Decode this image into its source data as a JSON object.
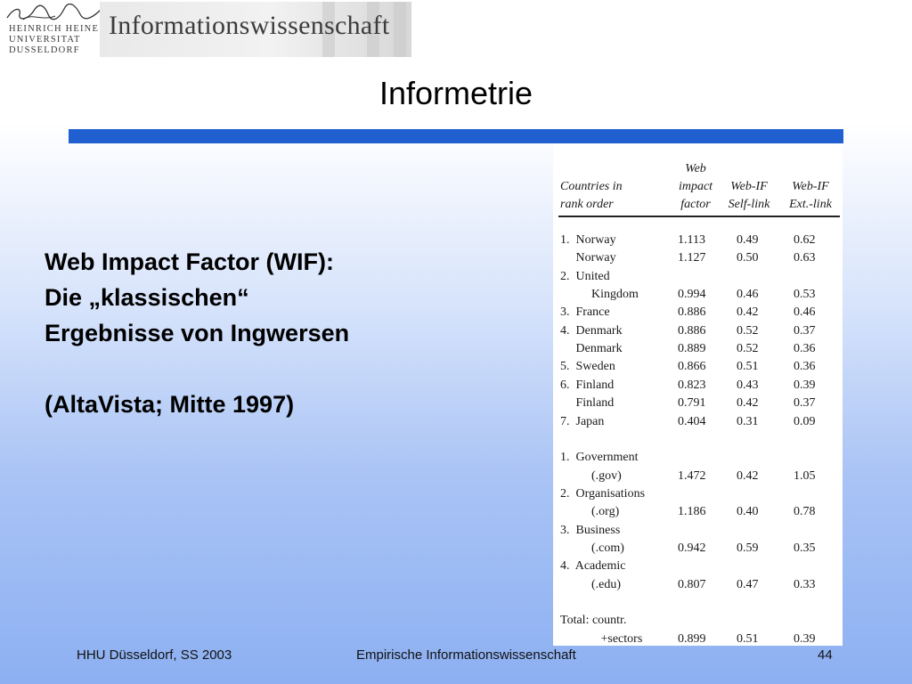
{
  "header": {
    "logo_lines": [
      "HEINRICH HEINE",
      "UNIVERSITAT",
      "DUSSELDORF"
    ],
    "banner_title": "Informationswissenschaft"
  },
  "slide": {
    "title": "Informetrie",
    "text_lines": [
      "Web Impact Factor (WIF):",
      "Die „klassischen“",
      "Ergebnisse von Ingwersen"
    ],
    "source_line": "(AltaVista; Mitte 1997)"
  },
  "table": {
    "headers": {
      "col0_l1": "Countries in",
      "col0_l2": "rank order",
      "col1_l1": "Web",
      "col1_l2": "impact",
      "col1_l3": "factor",
      "col2_l2": "Web-IF",
      "col2_l3": "Self-link",
      "col3_l2": "Web-IF",
      "col3_l3": "Ext.-link"
    },
    "rows": [
      {
        "label": "1.  Norway",
        "v1": "1.113",
        "v2": "0.49",
        "v3": "0.62"
      },
      {
        "label": "     Norway",
        "v1": "1.127",
        "v2": "0.50",
        "v3": "0.63"
      },
      {
        "label": "2.  United",
        "v1": "",
        "v2": "",
        "v3": ""
      },
      {
        "label": "          Kingdom",
        "v1": "0.994",
        "v2": "0.46",
        "v3": "0.53"
      },
      {
        "label": "3.  France",
        "v1": "0.886",
        "v2": "0.42",
        "v3": "0.46"
      },
      {
        "label": "4.  Denmark",
        "v1": "0.886",
        "v2": "0.52",
        "v3": "0.37"
      },
      {
        "label": "     Denmark",
        "v1": "0.889",
        "v2": "0.52",
        "v3": "0.36"
      },
      {
        "label": "5.  Sweden",
        "v1": "0.866",
        "v2": "0.51",
        "v3": "0.36"
      },
      {
        "label": "6.  Finland",
        "v1": "0.823",
        "v2": "0.43",
        "v3": "0.39"
      },
      {
        "label": "     Finland",
        "v1": "0.791",
        "v2": "0.42",
        "v3": "0.37"
      },
      {
        "label": "7.  Japan",
        "v1": "0.404",
        "v2": "0.31",
        "v3": "0.09"
      },
      {
        "label": "",
        "v1": "",
        "v2": "",
        "v3": ""
      },
      {
        "label": "1.  Government",
        "v1": "",
        "v2": "",
        "v3": ""
      },
      {
        "label": "          (.gov)",
        "v1": "1.472",
        "v2": "0.42",
        "v3": "1.05"
      },
      {
        "label": "2.  Organisations",
        "v1": "",
        "v2": "",
        "v3": ""
      },
      {
        "label": "          (.org)",
        "v1": "1.186",
        "v2": "0.40",
        "v3": "0.78"
      },
      {
        "label": "3.  Business",
        "v1": "",
        "v2": "",
        "v3": ""
      },
      {
        "label": "          (.com)",
        "v1": "0.942",
        "v2": "0.59",
        "v3": "0.35"
      },
      {
        "label": "4.  Academic",
        "v1": "",
        "v2": "",
        "v3": ""
      },
      {
        "label": "          (.edu)",
        "v1": "0.807",
        "v2": "0.47",
        "v3": "0.33"
      },
      {
        "label": "",
        "v1": "",
        "v2": "",
        "v3": ""
      },
      {
        "label": "Total: countr.",
        "v1": "",
        "v2": "",
        "v3": ""
      },
      {
        "label": "             +sectors",
        "v1": "0.899",
        "v2": "0.51",
        "v3": "0.39"
      }
    ]
  },
  "footer": {
    "left": "HHU Düsseldorf, SS 2003",
    "center": "Empirische Informationswissenschaft",
    "page_number": "44"
  },
  "colors": {
    "accent_bar": "#1f5fcf",
    "background_bottom": "#8db0f2"
  }
}
